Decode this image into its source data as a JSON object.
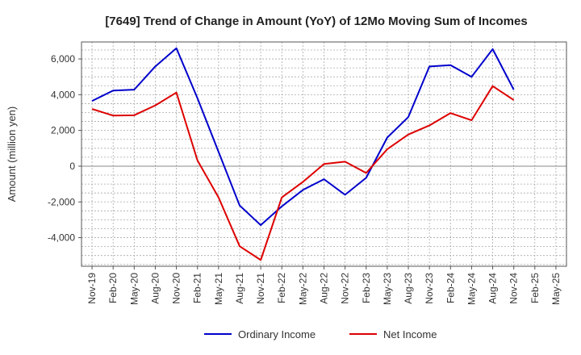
{
  "chart_data": {
    "type": "line",
    "title": "[7649]  Trend of Change in Amount (YoY) of 12Mo Moving Sum of Incomes",
    "ylabel": "Amount (million yen)",
    "xlabel": "",
    "ylim": [
      -5600,
      6950
    ],
    "yticks": [
      -4000,
      -2000,
      0,
      2000,
      4000,
      6000
    ],
    "ytick_labels": [
      "-4,000",
      "-2,000",
      "0",
      "2,000",
      "4,000",
      "6,000"
    ],
    "x": [
      "Nov-19",
      "Feb-20",
      "May-20",
      "Aug-20",
      "Nov-20",
      "Feb-21",
      "May-21",
      "Aug-21",
      "Nov-21",
      "Feb-22",
      "May-22",
      "Aug-22",
      "Nov-22",
      "Feb-23",
      "May-23",
      "Aug-23",
      "Nov-23",
      "Feb-24",
      "May-24",
      "Aug-24",
      "Nov-24",
      "Feb-25",
      "May-25"
    ],
    "grid": true,
    "legend_position": "bottom",
    "series": [
      {
        "name": "Ordinary Income",
        "color": "#0000cc",
        "values": [
          3650,
          4230,
          4280,
          5580,
          6600,
          3800,
          800,
          -2200,
          -3300,
          -2250,
          -1330,
          -730,
          -1600,
          -650,
          1600,
          2750,
          5580,
          5650,
          5000,
          6550,
          4280,
          null,
          null
        ]
      },
      {
        "name": "Net Income",
        "color": "#dd0000",
        "values": [
          3200,
          2830,
          2850,
          3400,
          4120,
          320,
          -1750,
          -4480,
          -5250,
          -1750,
          -880,
          120,
          250,
          -380,
          950,
          1770,
          2280,
          2970,
          2570,
          4480,
          3700,
          null,
          null
        ]
      }
    ]
  }
}
